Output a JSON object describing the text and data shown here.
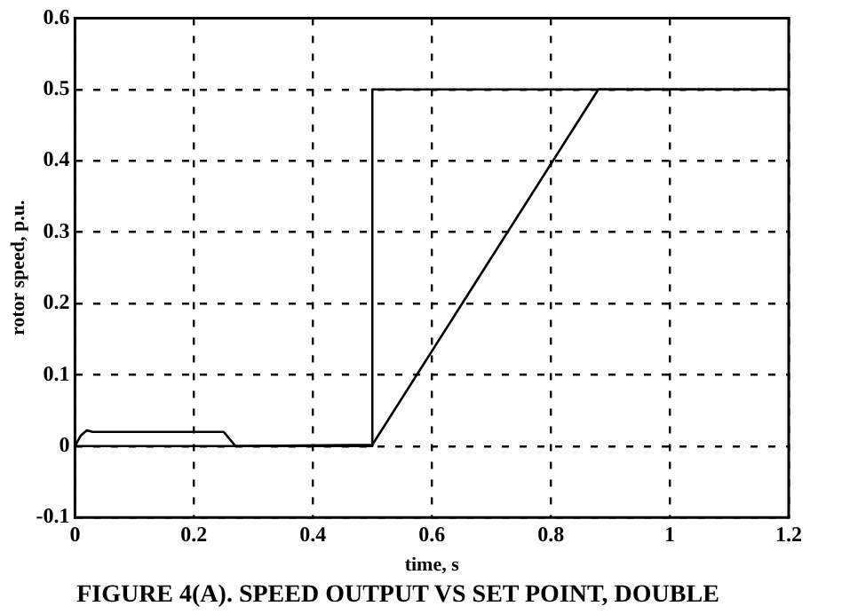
{
  "chart_data": {
    "type": "line",
    "title": "FIGURE 4(A). SPEED OUTPUT VS SET POINT, DOUBLE",
    "xlabel": "time, s",
    "ylabel": "rotor speed, p.u.",
    "xlim": [
      0,
      1.2
    ],
    "xticks": [
      0,
      0.2,
      0.4,
      0.6,
      0.8,
      1,
      1.2
    ],
    "ylim": [
      -0.1,
      0.6
    ],
    "yticks": [
      -0.1,
      0,
      0.1,
      0.2,
      0.3,
      0.4,
      0.5,
      0.6
    ],
    "grid": true,
    "legend": false,
    "marker": "none",
    "line_style": "solid",
    "series": [
      {
        "color": "#000000",
        "x": [
          0,
          0.5,
          0.5,
          1.2
        ],
        "values": [
          0,
          0,
          0.5,
          0.5
        ]
      },
      {
        "color": "#000000",
        "x": [
          0,
          0.01,
          0.02,
          0.03,
          0.25,
          0.26,
          0.27,
          0.5,
          0.88,
          1.2
        ],
        "values": [
          0,
          0.015,
          0.022,
          0.02,
          0.02,
          0.01,
          0,
          0.002,
          0.5,
          0.5
        ]
      }
    ]
  }
}
